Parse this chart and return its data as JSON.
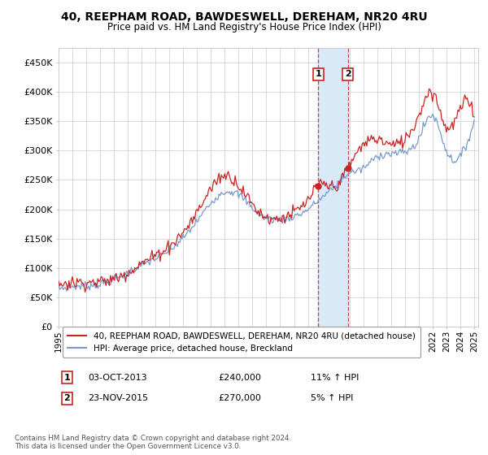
{
  "title": "40, REEPHAM ROAD, BAWDESWELL, DEREHAM, NR20 4RU",
  "subtitle": "Price paid vs. HM Land Registry's House Price Index (HPI)",
  "sale1_date": "03-OCT-2013",
  "sale1_price": 240000,
  "sale1_hpi": "11% ↑ HPI",
  "sale1_label": "1",
  "sale1_year": 2013.75,
  "sale2_date": "23-NOV-2015",
  "sale2_price": 270000,
  "sale2_hpi": "5% ↑ HPI",
  "sale2_label": "2",
  "sale2_year": 2015.88,
  "legend_red": "40, REEPHAM ROAD, BAWDESWELL, DEREHAM, NR20 4RU (detached house)",
  "legend_blue": "HPI: Average price, detached house, Breckland",
  "footer": "Contains HM Land Registry data © Crown copyright and database right 2024.\nThis data is licensed under the Open Government Licence v3.0.",
  "ylim": [
    0,
    475000
  ],
  "yticks": [
    0,
    50000,
    100000,
    150000,
    200000,
    250000,
    300000,
    350000,
    400000,
    450000
  ],
  "xlim_start": 1995,
  "xlim_end": 2025.3,
  "red_color": "#cc2222",
  "blue_color": "#7799cc",
  "marker_color": "#cc2222",
  "shade_color": "#d8eaf8",
  "grid_color": "#cccccc",
  "bg_color": "#ffffff"
}
